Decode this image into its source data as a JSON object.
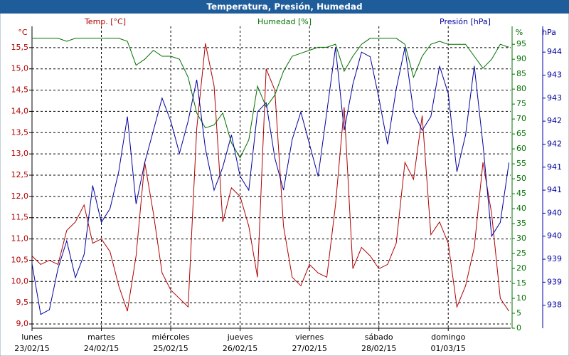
{
  "chart_data": {
    "type": "line",
    "title": "Temperatura, Presión, Humedad",
    "ylabel": "Temp. [°C]",
    "yunit": "°C",
    "y2label": "Humedad [%]",
    "y2unit": "%",
    "y3label": "Presión [hPa]",
    "y3unit": "hPa",
    "grid": true,
    "x": [
      0,
      0.125,
      0.25,
      0.375,
      0.5,
      0.625,
      0.75,
      0.875,
      1,
      1.125,
      1.25,
      1.375,
      1.5,
      1.625,
      1.75,
      1.875,
      2,
      2.125,
      2.25,
      2.375,
      2.5,
      2.625,
      2.75,
      2.875,
      3,
      3.125,
      3.25,
      3.375,
      3.5,
      3.625,
      3.75,
      3.875,
      4,
      4.125,
      4.25,
      4.375,
      4.5,
      4.625,
      4.75,
      4.875,
      5,
      5.125,
      5.25,
      5.375,
      5.5,
      5.625,
      5.75,
      5.875,
      6,
      6.125,
      6.25,
      6.375,
      6.5,
      6.625,
      6.75,
      6.875
    ],
    "xlim": [
      0,
      6.9
    ],
    "xticks": [
      {
        "value": 0,
        "label": "lunes",
        "date": "23/02/15"
      },
      {
        "value": 1,
        "label": "martes",
        "date": "24/02/15"
      },
      {
        "value": 2,
        "label": "miércoles",
        "date": "25/02/15"
      },
      {
        "value": 3,
        "label": "jueves",
        "date": "26/02/15"
      },
      {
        "value": 4,
        "label": "viernes",
        "date": "27/02/15"
      },
      {
        "value": 5,
        "label": "sábado",
        "date": "28/02/15"
      },
      {
        "value": 6,
        "label": "domingo",
        "date": "01/03/15"
      }
    ],
    "ylim": [
      8.9,
      16.0
    ],
    "yticks": [
      {
        "value": 9.0,
        "label": "9,0"
      },
      {
        "value": 9.5,
        "label": "9,5"
      },
      {
        "value": 10.0,
        "label": "10,0"
      },
      {
        "value": 10.5,
        "label": "10,5"
      },
      {
        "value": 11.0,
        "label": "11,0"
      },
      {
        "value": 11.5,
        "label": "11,5"
      },
      {
        "value": 12.0,
        "label": "12,0"
      },
      {
        "value": 12.5,
        "label": "12,5"
      },
      {
        "value": 13.0,
        "label": "13,0"
      },
      {
        "value": 13.5,
        "label": "13,5"
      },
      {
        "value": 14.0,
        "label": "14,0"
      },
      {
        "value": 14.5,
        "label": "14,5"
      },
      {
        "value": 15.0,
        "label": "15,0"
      },
      {
        "value": 15.5,
        "label": "15,5"
      }
    ],
    "y2lim": [
      0,
      101
    ],
    "y2ticks": [
      0,
      5,
      10,
      15,
      20,
      25,
      30,
      35,
      40,
      45,
      50,
      55,
      60,
      65,
      70,
      75,
      80,
      85,
      90,
      95
    ],
    "y3lim": [
      937.5,
      944.06
    ],
    "y3ticks": [
      938,
      {
        "value": 938.5,
        "label": "939"
      },
      939,
      {
        "value": 939.5,
        "label": "940"
      },
      940,
      {
        "value": 940.5,
        "label": "941"
      },
      941,
      {
        "value": 941.5,
        "label": "942"
      },
      942,
      {
        "value": 942.5,
        "label": "943"
      },
      943,
      {
        "value": 943.5,
        "label": "944"
      }
    ],
    "series": [
      {
        "name": "Temp. [°C]",
        "color": "#b00000",
        "axis": "y",
        "values": [
          10.6,
          10.4,
          10.5,
          10.4,
          11.2,
          11.4,
          11.8,
          10.9,
          11.0,
          10.7,
          9.9,
          9.3,
          10.6,
          12.8,
          11.6,
          10.2,
          9.8,
          9.6,
          9.4,
          13.6,
          15.6,
          14.6,
          11.4,
          12.2,
          12.0,
          11.3,
          10.1,
          15.0,
          14.5,
          11.3,
          10.1,
          9.9,
          10.4,
          10.2,
          10.1,
          11.8,
          14.1,
          10.3,
          10.8,
          10.6,
          10.3,
          10.4,
          10.9,
          12.8,
          12.4,
          13.9,
          11.1,
          11.4,
          10.9,
          9.4,
          9.9,
          10.8,
          12.8,
          11.6,
          9.6,
          9.3
        ]
      },
      {
        "name": "Humedad [%]",
        "color": "#007000",
        "axis": "y2",
        "values": [
          97,
          97,
          97,
          97,
          96,
          97,
          97,
          97,
          97,
          97,
          97,
          96,
          88,
          90,
          93,
          91,
          91,
          90,
          84,
          72,
          67,
          68,
          72,
          62,
          57,
          63,
          81,
          74,
          78,
          86,
          91,
          92,
          93,
          94,
          94,
          95,
          86,
          91,
          95,
          97,
          97,
          97,
          97,
          95,
          84,
          91,
          95,
          96,
          95,
          95,
          95,
          91,
          87,
          90,
          95,
          94
        ]
      },
      {
        "name": "Presión [hPa]",
        "color": "#0000a0",
        "axis": "y3",
        "values": [
          938.9,
          937.8,
          937.9,
          938.8,
          939.4,
          938.6,
          939.1,
          940.6,
          939.8,
          940.1,
          940.9,
          942.1,
          940.2,
          941.1,
          941.8,
          942.5,
          942.0,
          941.3,
          942.0,
          942.9,
          941.4,
          940.5,
          941.0,
          941.7,
          940.8,
          940.5,
          942.2,
          942.4,
          941.2,
          940.5,
          941.6,
          942.2,
          941.5,
          940.8,
          942.2,
          943.6,
          941.8,
          942.8,
          943.5,
          943.4,
          942.5,
          941.5,
          942.7,
          943.6,
          942.2,
          941.8,
          942.1,
          943.2,
          942.6,
          940.9,
          941.7,
          943.2,
          941.5,
          939.5,
          939.8,
          941.1
        ]
      }
    ]
  }
}
